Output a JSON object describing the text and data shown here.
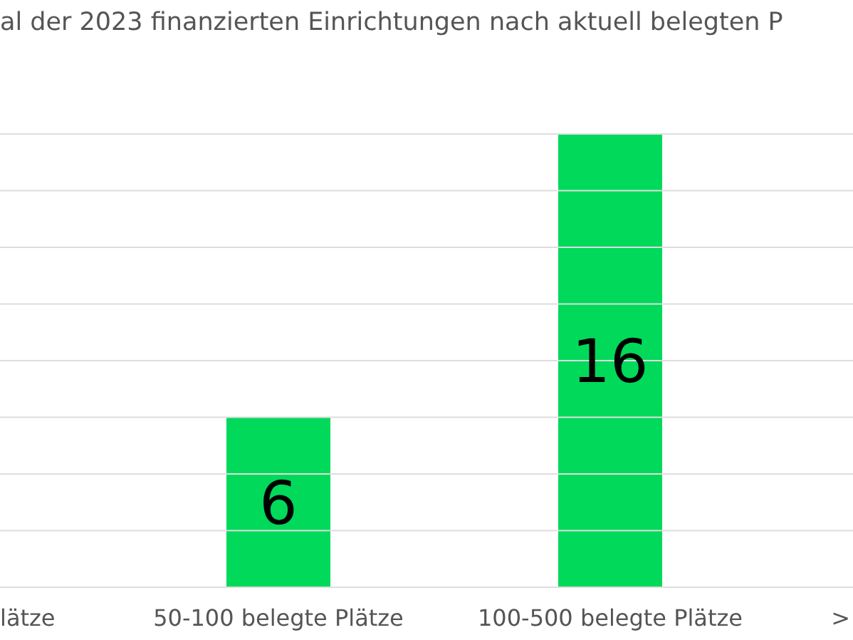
{
  "chart_data": {
    "type": "bar",
    "title": "al der 2023 finanzierten Einrichtungen nach aktuell belegten P",
    "categories": [
      "lätze",
      "50-100 belegte Plätze",
      "100-500 belegte Plätze",
      ">"
    ],
    "values": [
      null,
      6,
      16,
      null
    ],
    "color": "#00d95a",
    "ylim": [
      0,
      16
    ],
    "yticks": [
      {
        "value": 0,
        "label": null
      },
      {
        "value": 2,
        "label": null
      },
      {
        "value": 4,
        "label": null
      },
      {
        "value": 6,
        "label": null
      },
      {
        "value": 8,
        "label": null
      },
      {
        "value": 10,
        "label": null
      },
      {
        "value": 12,
        "label": null
      },
      {
        "value": 14,
        "label": null
      },
      {
        "value": 16,
        "label": null
      }
    ],
    "tick_labels": "x",
    "grid": "y",
    "data_labels": true
  }
}
